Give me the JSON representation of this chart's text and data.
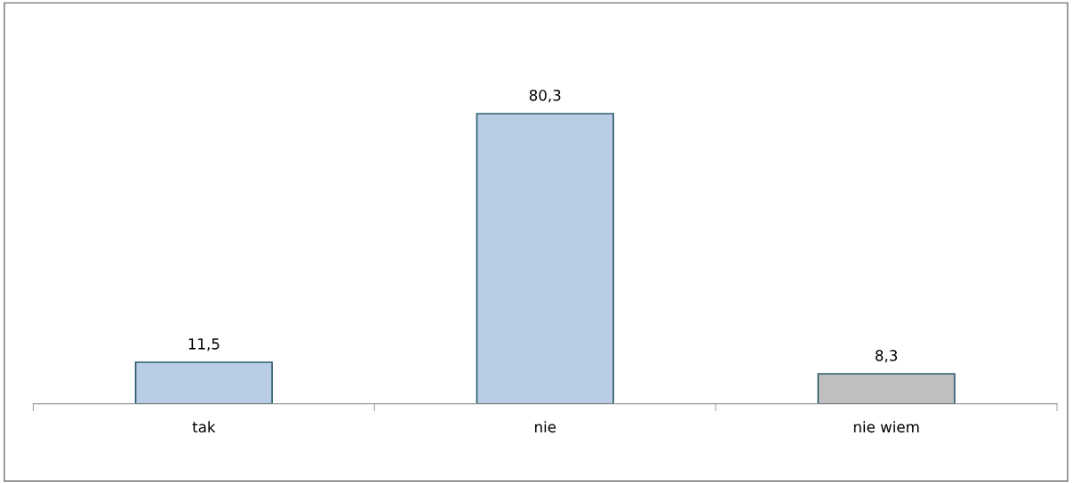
{
  "chart_data": {
    "type": "bar",
    "categories": [
      "tak",
      "nie",
      "nie wiem"
    ],
    "values": [
      11.5,
      80.3,
      8.3
    ],
    "colors": [
      "#b9cde5",
      "#b9cde5",
      "#bfbfbf"
    ],
    "data_labels": true,
    "value_labels": [
      "11,5",
      "80,3",
      "8,3"
    ],
    "grid": false,
    "legend": false
  }
}
